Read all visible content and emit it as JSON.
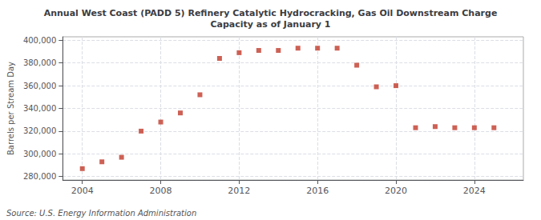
{
  "chart_data": {
    "type": "scatter",
    "title": "Annual West Coast (PADD 5) Refinery Catalytic Hydrocracking, Gas Oil Downstream Charge\nCapacity as of January 1",
    "ylabel": "Barrels per Stream Day",
    "annotation": "Source: U.S. Energy Information Administration",
    "color": "#c0392b",
    "marker": "square",
    "grid": true,
    "x": [
      2004,
      2005,
      2006,
      2007,
      2008,
      2009,
      2010,
      2011,
      2012,
      2013,
      2014,
      2015,
      2016,
      2017,
      2018,
      2019,
      2020,
      2021,
      2022,
      2023,
      2024,
      2025
    ],
    "values": [
      287000,
      293000,
      297000,
      320000,
      328000,
      336000,
      352000,
      384000,
      389000,
      391000,
      391000,
      393000,
      393000,
      393000,
      378000,
      359000,
      360000,
      323000,
      324000,
      323000,
      323000,
      323000
    ],
    "xlim": [
      2003.0,
      2026.5
    ],
    "xticks": [
      2004,
      2008,
      2012,
      2016,
      2020,
      2024
    ],
    "ylim": [
      277000,
      403000
    ],
    "yticks": [
      {
        "value": 280000,
        "label": "280,000"
      },
      {
        "value": 300000,
        "label": "300,000"
      },
      {
        "value": 320000,
        "label": "320,000"
      },
      {
        "value": 340000,
        "label": "340,000"
      },
      {
        "value": 360000,
        "label": "360,000"
      },
      {
        "value": 380000,
        "label": "380,000"
      },
      {
        "value": 400000,
        "label": "400,000"
      }
    ]
  }
}
